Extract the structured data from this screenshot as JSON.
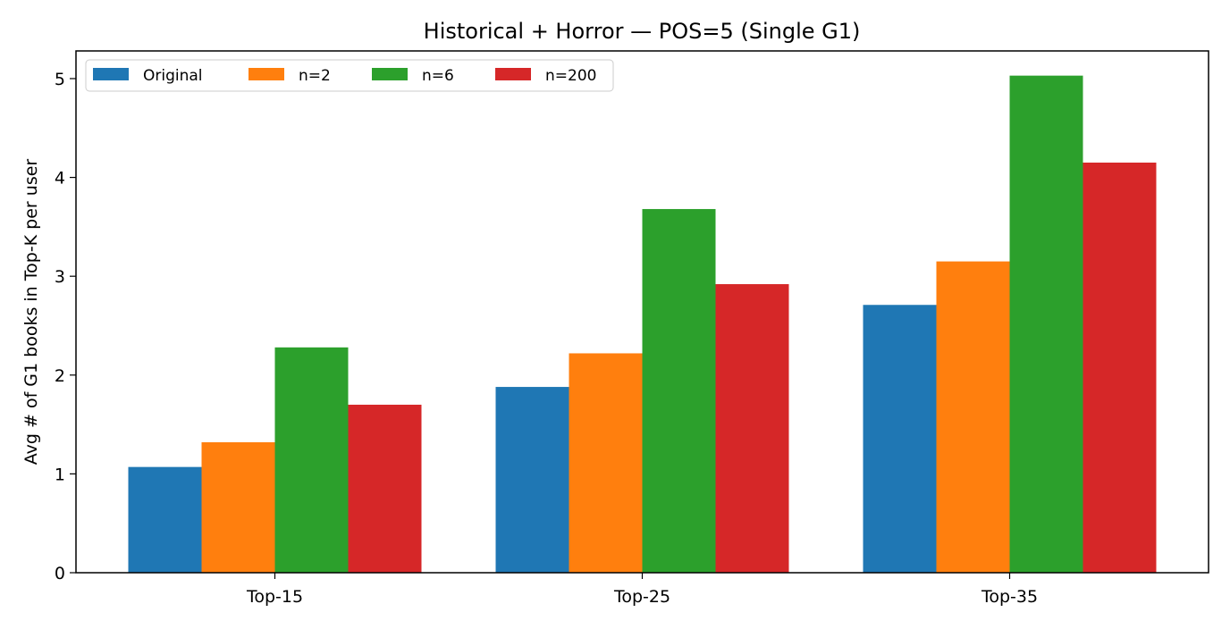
{
  "chart_data": {
    "type": "bar",
    "title": "Historical + Horror — POS=5 (Single G1)",
    "xlabel": "",
    "ylabel": "Avg # of G1 books in Top-K per user",
    "categories": [
      "Top-15",
      "Top-25",
      "Top-35"
    ],
    "series": [
      {
        "name": "Original",
        "color": "#1f77b4",
        "values": [
          1.07,
          1.88,
          2.71
        ]
      },
      {
        "name": "n=2",
        "color": "#ff7f0e",
        "values": [
          1.32,
          2.22,
          3.15
        ]
      },
      {
        "name": "n=6",
        "color": "#2ca02c",
        "values": [
          2.28,
          3.68,
          5.03
        ]
      },
      {
        "name": "n=200",
        "color": "#d62728",
        "values": [
          1.7,
          2.92,
          4.15
        ]
      }
    ],
    "ylim": [
      0,
      5.28
    ],
    "yticks": [
      "0",
      "1",
      "2",
      "3",
      "4",
      "5"
    ],
    "grid": false,
    "legend_position": "top-left"
  }
}
